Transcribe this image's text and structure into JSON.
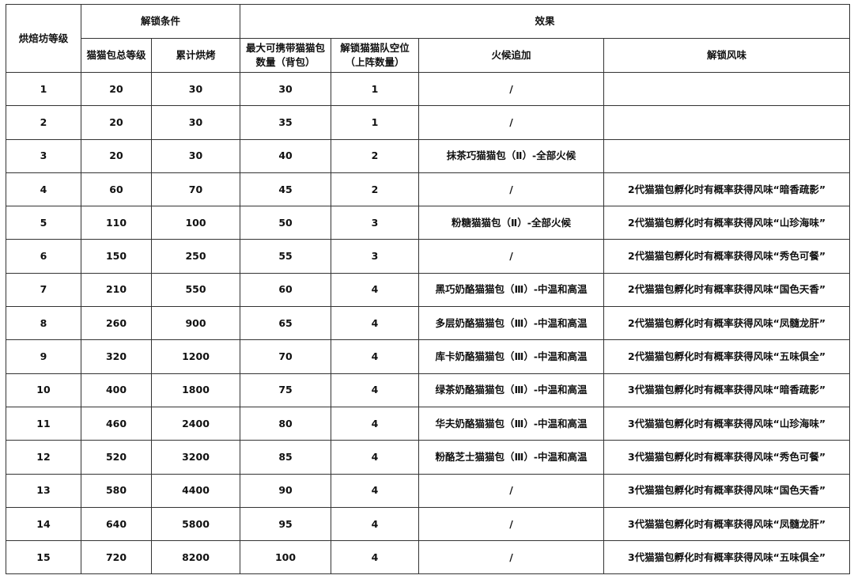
{
  "headers": {
    "level": "烘焙坊等级",
    "unlock_conditions": "解锁条件",
    "effects": "效果",
    "total_bun_level": "猫猫包总等级",
    "cumulative_baking": "累计烘烤",
    "max_carry": "最大可携带猫猫包数量（背包）",
    "team_slots": "解锁猫猫队空位（上阵数量）",
    "heat_bonus": "火候追加",
    "flavor_unlock": "解锁风味"
  },
  "rows": [
    [
      "1",
      "20",
      "30",
      "30",
      "1",
      "/",
      ""
    ],
    [
      "2",
      "20",
      "30",
      "35",
      "1",
      "/",
      ""
    ],
    [
      "3",
      "20",
      "30",
      "40",
      "2",
      "抹茶巧猫猫包（Ⅱ）-全部火候",
      ""
    ],
    [
      "4",
      "60",
      "70",
      "45",
      "2",
      "/",
      "2代猫猫包孵化时有概率获得风味“暗香疏影”"
    ],
    [
      "5",
      "110",
      "100",
      "50",
      "3",
      "粉糖猫猫包（Ⅱ）-全部火候",
      "2代猫猫包孵化时有概率获得风味“山珍海味”"
    ],
    [
      "6",
      "150",
      "250",
      "55",
      "3",
      "/",
      "2代猫猫包孵化时有概率获得风味“秀色可餐”"
    ],
    [
      "7",
      "210",
      "550",
      "60",
      "4",
      "黑巧奶酪猫猫包（Ⅲ）-中温和高温",
      "2代猫猫包孵化时有概率获得风味“国色天香”"
    ],
    [
      "8",
      "260",
      "900",
      "65",
      "4",
      "多层奶酪猫猫包（Ⅲ）-中温和高温",
      "2代猫猫包孵化时有概率获得风味“凤髓龙肝”"
    ],
    [
      "9",
      "320",
      "1200",
      "70",
      "4",
      "库卡奶酪猫猫包（Ⅲ）-中温和高温",
      "2代猫猫包孵化时有概率获得风味“五味俱全”"
    ],
    [
      "10",
      "400",
      "1800",
      "75",
      "4",
      "绿茶奶酪猫猫包（Ⅲ）-中温和高温",
      "3代猫猫包孵化时有概率获得风味“暗香疏影”"
    ],
    [
      "11",
      "460",
      "2400",
      "80",
      "4",
      "华夫奶酪猫猫包（Ⅲ）-中温和高温",
      "3代猫猫包孵化时有概率获得风味“山珍海味”"
    ],
    [
      "12",
      "520",
      "3200",
      "85",
      "4",
      "粉酪芝士猫猫包（Ⅲ）-中温和高温",
      "3代猫猫包孵化时有概率获得风味“秀色可餐”"
    ],
    [
      "13",
      "580",
      "4400",
      "90",
      "4",
      "/",
      "3代猫猫包孵化时有概率获得风味“国色天香”"
    ],
    [
      "14",
      "640",
      "5800",
      "95",
      "4",
      "/",
      "3代猫猫包孵化时有概率获得风味“凤髓龙肝”"
    ],
    [
      "15",
      "720",
      "8200",
      "100",
      "4",
      "/",
      "3代猫猫包孵化时有概率获得风味“五味俱全”"
    ]
  ]
}
